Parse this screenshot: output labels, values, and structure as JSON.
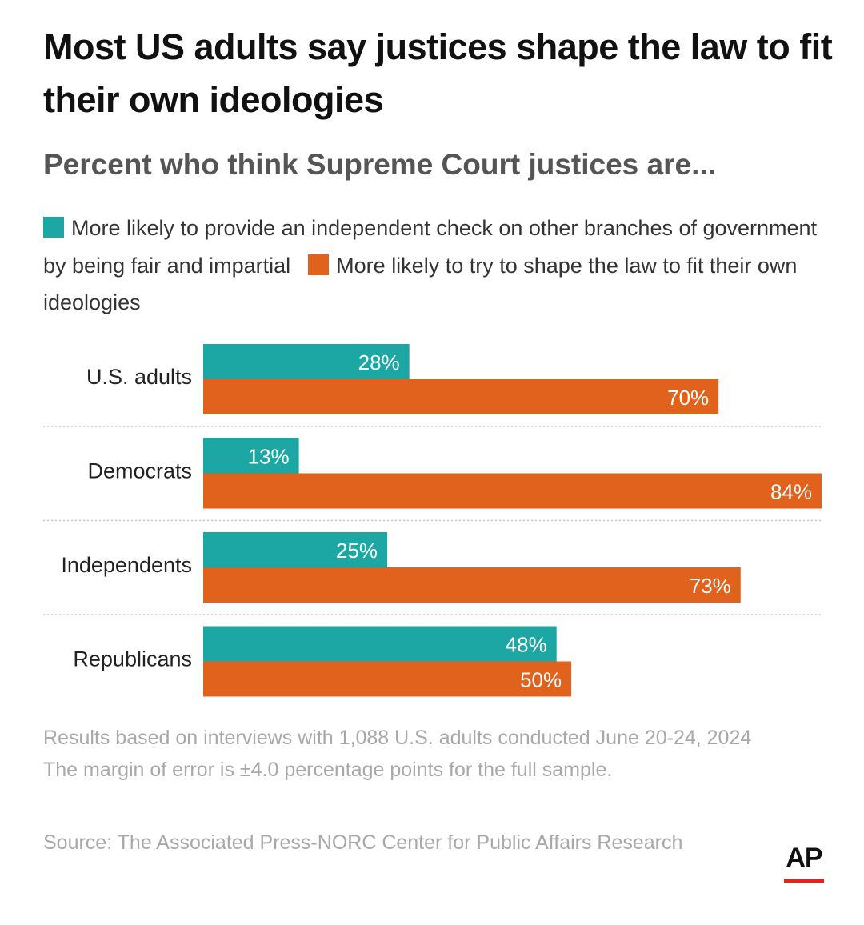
{
  "title": "Most US adults say justices shape the law to fit their own ideologies",
  "subtitle": "Percent who think Supreme Court justices are...",
  "footnote": "Results based on interviews with 1,088 U.S. adults conducted June 20-24, 2024 The margin of error is ±4.0 percentage points for the full sample.",
  "source": "Source: The Associated Press-NORC Center for Public Affairs Research",
  "logo": "AP",
  "chart_data": {
    "type": "bar",
    "orientation": "horizontal",
    "categories": [
      "U.S. adults",
      "Democrats",
      "Independents",
      "Republicans"
    ],
    "series": [
      {
        "name": "More likely to provide an independent check on other branches of government by being fair and impartial",
        "color": "#1ca7a4",
        "values": [
          28,
          13,
          25,
          48
        ],
        "labels": [
          "28%",
          "13%",
          "25%",
          "48%"
        ]
      },
      {
        "name": "More likely to try to shape the law to fit their own ideologies",
        "color": "#e0621c",
        "values": [
          70,
          84,
          73,
          50
        ],
        "labels": [
          "70%",
          "84%",
          "73%",
          "50%"
        ]
      }
    ],
    "xlim": [
      0,
      84
    ],
    "grid": false,
    "legend_position": "top"
  }
}
